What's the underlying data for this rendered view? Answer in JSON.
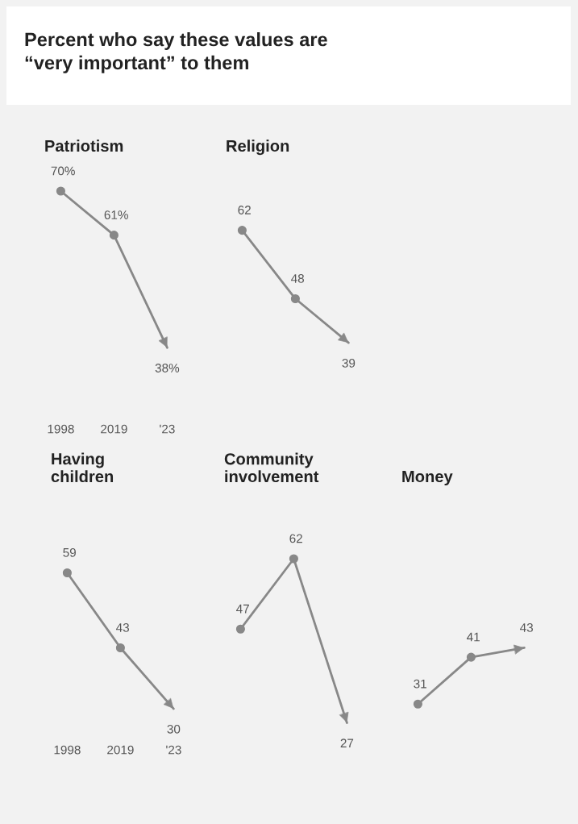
{
  "chart_data": [
    {
      "type": "line",
      "title": "Patriotism",
      "categories": [
        "1998",
        "2019",
        "'23"
      ],
      "values": [
        70,
        61,
        38
      ],
      "value_labels": [
        "70%",
        "61%",
        "38%"
      ],
      "color": "#888888",
      "marker": "circle",
      "tick_labels": "x",
      "annotations": [
        "Percent who say these values are\n“very important” to them"
      ]
    },
    {
      "type": "line",
      "title": "Religion",
      "categories": [
        null,
        null,
        null
      ],
      "values": [
        62,
        48,
        39
      ],
      "value_labels": [
        "62",
        "48",
        "39"
      ],
      "color": "#888888",
      "marker": "circle",
      "tick_labels": false
    },
    {
      "type": "line",
      "title": "Having\nchildren",
      "categories": [
        "1998",
        "2019",
        "'23"
      ],
      "values": [
        59,
        43,
        30
      ],
      "value_labels": [
        "59",
        "43",
        "30"
      ],
      "color": "#888888",
      "marker": "circle",
      "tick_labels": "x"
    },
    {
      "type": "line",
      "title": "Community\ninvolvement",
      "categories": [
        null,
        null,
        null
      ],
      "values": [
        47,
        62,
        27
      ],
      "value_labels": [
        "47",
        "62",
        "27"
      ],
      "color": "#888888",
      "marker": "circle",
      "tick_labels": false
    },
    {
      "type": "line",
      "title": "Money",
      "categories": [
        null,
        null,
        null
      ],
      "values": [
        31,
        41,
        43
      ],
      "value_labels": [
        "31",
        "41",
        "43"
      ],
      "color": "#888888",
      "marker": "circle",
      "tick_labels": false
    }
  ]
}
